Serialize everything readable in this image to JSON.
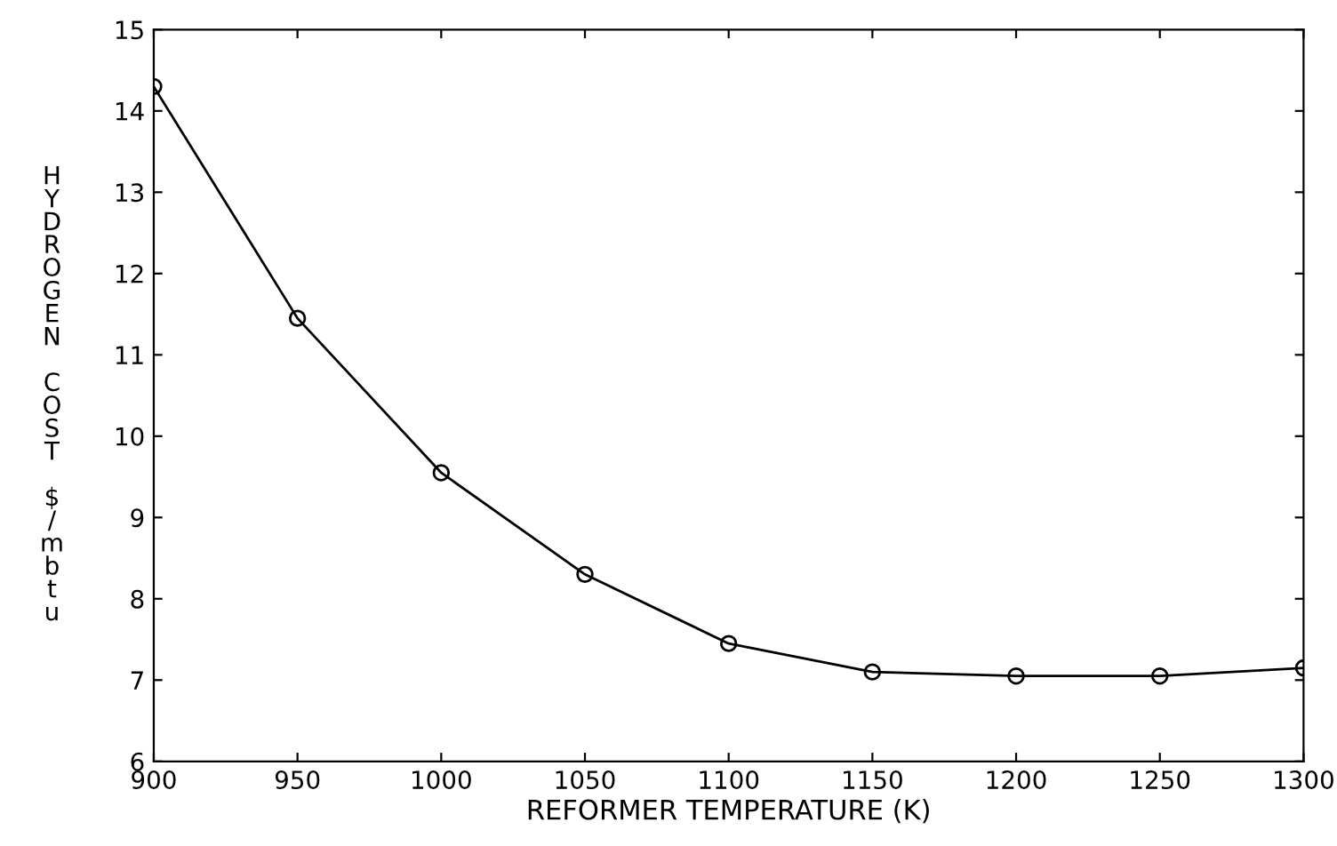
{
  "chart_data": {
    "type": "line",
    "xlabel": "REFORMER TEMPERATURE (K)",
    "ylabel": "HYDROGEN COST $/mbtu",
    "x": [
      900,
      950,
      1000,
      1050,
      1100,
      1150,
      1200,
      1250,
      1300
    ],
    "series": [
      {
        "color": "#000000",
        "values": [
          14.3,
          11.45,
          9.55,
          8.3,
          7.45,
          7.1,
          7.05,
          7.05,
          7.15
        ]
      }
    ],
    "marker": "circle",
    "line_style": "solid",
    "grid": false,
    "legend": false,
    "xlim": [
      900,
      1300
    ],
    "ylim": [
      6,
      15
    ],
    "xticks": [
      900,
      950,
      1000,
      1050,
      1100,
      1150,
      1200,
      1250,
      1300
    ],
    "yticks": [
      6,
      7,
      8,
      9,
      10,
      11,
      12,
      13,
      14,
      15
    ]
  }
}
